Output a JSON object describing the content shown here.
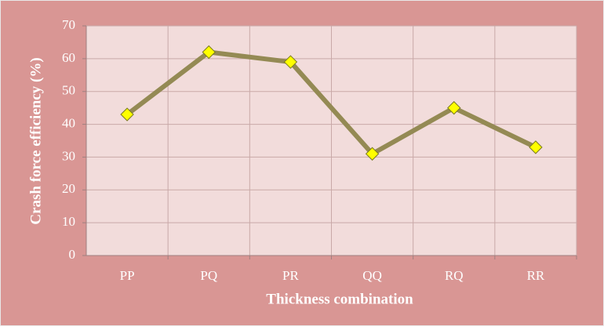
{
  "chart_data": {
    "type": "line",
    "x_label": "Thickness combination",
    "y_label": "Crash force efficiency (%)",
    "categories": [
      "PP",
      "PQ",
      "PR",
      "QQ",
      "RQ",
      "RR"
    ],
    "series": [
      {
        "color": "#948a54",
        "marker_color": "#ffff00",
        "values": [
          43,
          62,
          59,
          31,
          45,
          33
        ]
      }
    ],
    "ylim": [
      0,
      70
    ],
    "yticks": [
      0,
      10,
      20,
      30,
      40,
      50,
      60,
      70
    ],
    "grid": true
  }
}
